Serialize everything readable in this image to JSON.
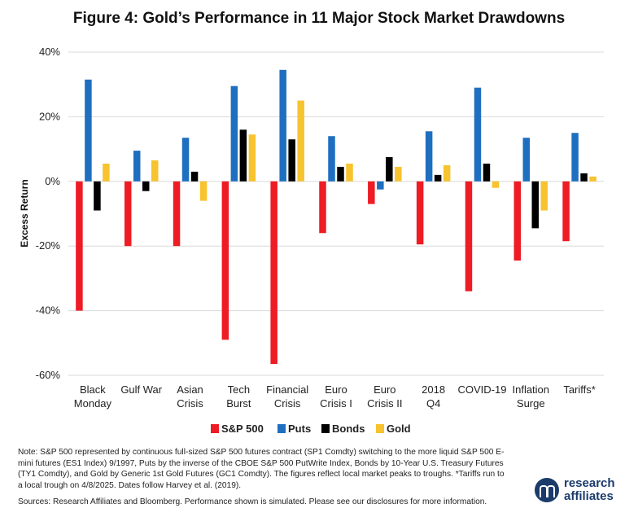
{
  "title": "Figure 4: Gold’s Performance in 11 Major Stock Market Drawdowns",
  "chart_data": {
    "type": "bar",
    "ylabel": "Excess Return",
    "ylim": [
      -60,
      40
    ],
    "yticks": [
      "40%",
      "20%",
      "0%",
      "-20%",
      "-40%",
      "-60%"
    ],
    "ytick_values": [
      40,
      20,
      0,
      -20,
      -40,
      -60
    ],
    "grid": "horizontal",
    "legend_position": "bottom",
    "categories": [
      [
        "Black",
        "Monday"
      ],
      [
        "Gulf War"
      ],
      [
        "Asian",
        "Crisis"
      ],
      [
        "Tech",
        "Burst"
      ],
      [
        "Financial",
        "Crisis"
      ],
      [
        "Euro",
        "Crisis I"
      ],
      [
        "Euro",
        "Crisis II"
      ],
      [
        "2018",
        "Q4"
      ],
      [
        "COVID-19"
      ],
      [
        "Inflation",
        "Surge"
      ],
      [
        "Tariffs*"
      ]
    ],
    "series": [
      {
        "name": "S&P 500",
        "color": "#ee1c25",
        "values": [
          -40.0,
          -20.0,
          -20.0,
          -49.0,
          -56.5,
          -16.0,
          -7.0,
          -19.5,
          -34.0,
          -24.5,
          -18.5
        ]
      },
      {
        "name": "Puts",
        "color": "#1f6fc0",
        "values": [
          31.5,
          9.5,
          13.5,
          29.5,
          34.5,
          14.0,
          -2.5,
          15.5,
          29.0,
          13.5,
          15.0
        ]
      },
      {
        "name": "Bonds",
        "color": "#000000",
        "values": [
          -9.0,
          -3.0,
          3.0,
          16.0,
          13.0,
          4.5,
          7.5,
          2.0,
          5.5,
          -14.5,
          2.5
        ]
      },
      {
        "name": "Gold",
        "color": "#f7c32e",
        "values": [
          5.5,
          6.5,
          -6.0,
          14.5,
          25.0,
          5.5,
          4.5,
          5.0,
          -2.0,
          -9.0,
          1.5
        ]
      }
    ]
  },
  "note": "Note: S&P 500 represented by continuous full-sized S&P 500 futures contract (SP1 Comdty) switching to the more liquid S&P 500 E-mini futures (ES1 Index) 9/1997, Puts by the inverse of the CBOE S&P 500 PutWrite Index, Bonds by 10-Year U.S. Treasury Futures (TY1 Comdty), and Gold by Generic 1st Gold Futures (GC1 Comdty). The figures reflect local market peaks to troughs. *Tariffs run to a local trough on 4/8/2025. Dates follow Harvey et al. (2019).",
  "sources": "Sources: Research Affiliates and Bloomberg. Performance shown is simulated. Please see our disclosures for more information.",
  "logo": {
    "line1": "research",
    "line2": "affiliates"
  }
}
